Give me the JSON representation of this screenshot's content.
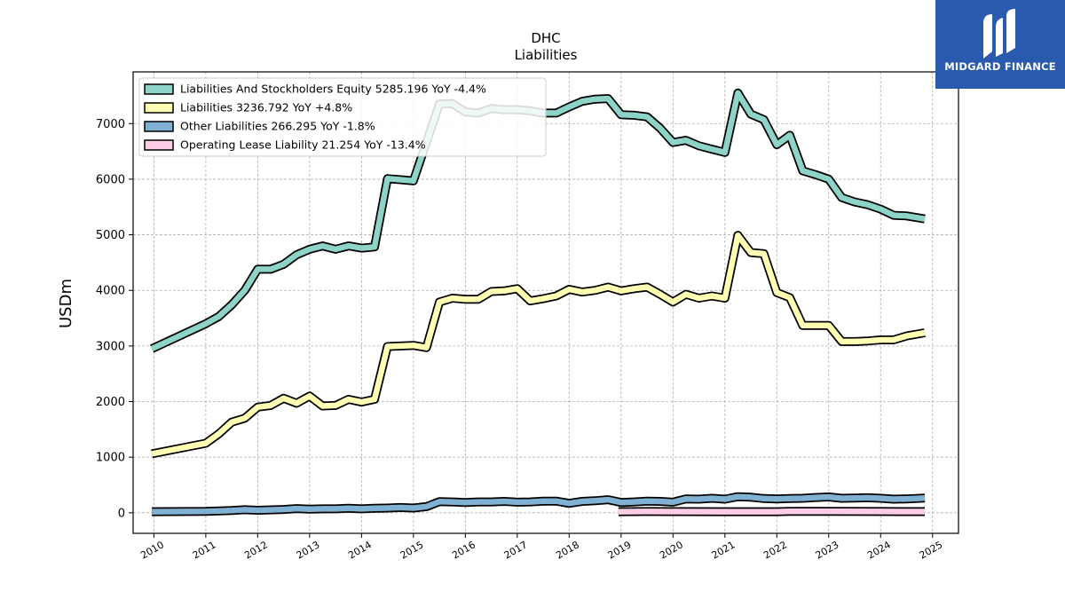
{
  "brand": {
    "name": "MIDGARD FINANCE",
    "logo_icon": "midgard-logo-icon",
    "color": "#2a5aad"
  },
  "chart_data": {
    "type": "line",
    "title": "DHC",
    "subtitle": "Liabilities",
    "ylabel": "USDm",
    "xlabel": "",
    "xlim": [
      2009.6,
      2025.5
    ],
    "ylim": [
      -370,
      7930
    ],
    "yticks": [
      0,
      1000,
      2000,
      3000,
      4000,
      5000,
      6000,
      7000
    ],
    "xticks": [
      "2010",
      "2011",
      "2012",
      "2013",
      "2014",
      "2015",
      "2016",
      "2017",
      "2018",
      "2019",
      "2020",
      "2021",
      "2022",
      "2023",
      "2024",
      "2025"
    ],
    "grid": true,
    "legend_position": "upper-left",
    "series": [
      {
        "name": "Liabilities And Stockholders Equity",
        "legend": "Liabilities And Stockholders Equity  5285.196 YoY -4.4%",
        "color": "#8dd3c7",
        "points": [
          [
            2009.96,
            2950
          ],
          [
            2011.0,
            3400
          ],
          [
            2011.25,
            3530
          ],
          [
            2011.5,
            3740
          ],
          [
            2011.75,
            4000
          ],
          [
            2012.0,
            4380
          ],
          [
            2012.25,
            4380
          ],
          [
            2012.5,
            4470
          ],
          [
            2012.75,
            4640
          ],
          [
            2013.0,
            4740
          ],
          [
            2013.25,
            4800
          ],
          [
            2013.5,
            4740
          ],
          [
            2013.75,
            4800
          ],
          [
            2014.0,
            4760
          ],
          [
            2014.25,
            4780
          ],
          [
            2014.5,
            6010
          ],
          [
            2014.75,
            5990
          ],
          [
            2015.0,
            5970
          ],
          [
            2015.5,
            7350
          ],
          [
            2015.75,
            7360
          ],
          [
            2016.0,
            7210
          ],
          [
            2016.25,
            7190
          ],
          [
            2016.5,
            7270
          ],
          [
            2016.75,
            7250
          ],
          [
            2017.0,
            7250
          ],
          [
            2017.25,
            7230
          ],
          [
            2017.5,
            7190
          ],
          [
            2017.75,
            7190
          ],
          [
            2018.0,
            7300
          ],
          [
            2018.25,
            7400
          ],
          [
            2018.5,
            7440
          ],
          [
            2018.75,
            7450
          ],
          [
            2019.0,
            7160
          ],
          [
            2019.25,
            7150
          ],
          [
            2019.5,
            7120
          ],
          [
            2019.75,
            6920
          ],
          [
            2020.0,
            6660
          ],
          [
            2020.25,
            6700
          ],
          [
            2020.5,
            6600
          ],
          [
            2020.75,
            6540
          ],
          [
            2021.0,
            6480
          ],
          [
            2021.25,
            7550
          ],
          [
            2021.5,
            7170
          ],
          [
            2021.75,
            7070
          ],
          [
            2022.0,
            6620
          ],
          [
            2022.25,
            6790
          ],
          [
            2022.5,
            6150
          ],
          [
            2022.75,
            6080
          ],
          [
            2023.0,
            6000
          ],
          [
            2023.25,
            5670
          ],
          [
            2023.5,
            5590
          ],
          [
            2023.75,
            5540
          ],
          [
            2024.0,
            5460
          ],
          [
            2024.25,
            5350
          ],
          [
            2024.5,
            5340
          ],
          [
            2024.85,
            5285
          ]
        ]
      },
      {
        "name": "Liabilities",
        "legend": "Liabilities  3236.792 YoY +4.8%",
        "color": "#ffffb3",
        "points": [
          [
            2009.96,
            1060
          ],
          [
            2011.0,
            1250
          ],
          [
            2011.25,
            1420
          ],
          [
            2011.5,
            1630
          ],
          [
            2011.75,
            1700
          ],
          [
            2012.0,
            1900
          ],
          [
            2012.25,
            1930
          ],
          [
            2012.5,
            2060
          ],
          [
            2012.75,
            1970
          ],
          [
            2013.0,
            2100
          ],
          [
            2013.25,
            1920
          ],
          [
            2013.5,
            1930
          ],
          [
            2013.75,
            2040
          ],
          [
            2014.0,
            1990
          ],
          [
            2014.25,
            2040
          ],
          [
            2014.5,
            2990
          ],
          [
            2014.75,
            3000
          ],
          [
            2015.0,
            3010
          ],
          [
            2015.25,
            2970
          ],
          [
            2015.5,
            3790
          ],
          [
            2015.75,
            3860
          ],
          [
            2016.0,
            3840
          ],
          [
            2016.25,
            3840
          ],
          [
            2016.5,
            3980
          ],
          [
            2016.75,
            3990
          ],
          [
            2017.0,
            4030
          ],
          [
            2017.25,
            3810
          ],
          [
            2017.5,
            3850
          ],
          [
            2017.75,
            3900
          ],
          [
            2018.0,
            4020
          ],
          [
            2018.25,
            3970
          ],
          [
            2018.5,
            4000
          ],
          [
            2018.75,
            4060
          ],
          [
            2019.0,
            3990
          ],
          [
            2019.25,
            4030
          ],
          [
            2019.5,
            4060
          ],
          [
            2019.75,
            3930
          ],
          [
            2020.0,
            3790
          ],
          [
            2020.25,
            3930
          ],
          [
            2020.5,
            3860
          ],
          [
            2020.75,
            3900
          ],
          [
            2021.0,
            3860
          ],
          [
            2021.25,
            4990
          ],
          [
            2021.5,
            4680
          ],
          [
            2021.75,
            4660
          ],
          [
            2022.0,
            3960
          ],
          [
            2022.25,
            3870
          ],
          [
            2022.5,
            3370
          ],
          [
            2022.75,
            3370
          ],
          [
            2023.0,
            3370
          ],
          [
            2023.25,
            3080
          ],
          [
            2023.5,
            3080
          ],
          [
            2023.75,
            3090
          ],
          [
            2024.0,
            3110
          ],
          [
            2024.25,
            3110
          ],
          [
            2024.5,
            3180
          ],
          [
            2024.85,
            3237
          ]
        ]
      },
      {
        "name": "Other Liabilities",
        "legend": "Other Liabilities  266.295 YoY -1.8%",
        "color": "#80b1d3",
        "points": [
          [
            2009.96,
            20
          ],
          [
            2011.0,
            25
          ],
          [
            2011.5,
            40
          ],
          [
            2011.75,
            55
          ],
          [
            2012.0,
            45
          ],
          [
            2012.5,
            60
          ],
          [
            2012.75,
            75
          ],
          [
            2013.0,
            65
          ],
          [
            2013.25,
            70
          ],
          [
            2013.5,
            70
          ],
          [
            2013.75,
            80
          ],
          [
            2014.0,
            70
          ],
          [
            2014.25,
            80
          ],
          [
            2014.5,
            85
          ],
          [
            2014.75,
            95
          ],
          [
            2015.0,
            85
          ],
          [
            2015.25,
            110
          ],
          [
            2015.5,
            200
          ],
          [
            2015.75,
            195
          ],
          [
            2016.0,
            185
          ],
          [
            2016.25,
            195
          ],
          [
            2016.5,
            195
          ],
          [
            2016.75,
            205
          ],
          [
            2017.0,
            190
          ],
          [
            2017.25,
            195
          ],
          [
            2017.5,
            210
          ],
          [
            2017.75,
            210
          ],
          [
            2018.0,
            170
          ],
          [
            2018.25,
            205
          ],
          [
            2018.5,
            215
          ],
          [
            2018.75,
            235
          ],
          [
            2019.0,
            185
          ],
          [
            2019.25,
            195
          ],
          [
            2019.5,
            210
          ],
          [
            2019.75,
            205
          ],
          [
            2020.0,
            190
          ],
          [
            2020.25,
            250
          ],
          [
            2020.5,
            245
          ],
          [
            2020.75,
            260
          ],
          [
            2021.0,
            245
          ],
          [
            2021.25,
            290
          ],
          [
            2021.5,
            280
          ],
          [
            2021.75,
            255
          ],
          [
            2022.0,
            250
          ],
          [
            2022.25,
            255
          ],
          [
            2022.5,
            260
          ],
          [
            2022.75,
            275
          ],
          [
            2023.0,
            285
          ],
          [
            2023.25,
            260
          ],
          [
            2023.5,
            265
          ],
          [
            2023.75,
            270
          ],
          [
            2024.0,
            260
          ],
          [
            2024.25,
            245
          ],
          [
            2024.5,
            250
          ],
          [
            2024.85,
            266
          ]
        ]
      },
      {
        "name": "Operating Lease Liability",
        "legend": "Operating Lease Liability  21.254 YoY -13.4%",
        "color": "#fccde5",
        "points": [
          [
            2018.95,
            20
          ],
          [
            2019.5,
            22
          ],
          [
            2020.0,
            21
          ],
          [
            2021.0,
            20
          ],
          [
            2022.0,
            20
          ],
          [
            2022.25,
            25
          ],
          [
            2023.0,
            24
          ],
          [
            2024.0,
            22
          ],
          [
            2024.85,
            21
          ]
        ]
      }
    ]
  }
}
